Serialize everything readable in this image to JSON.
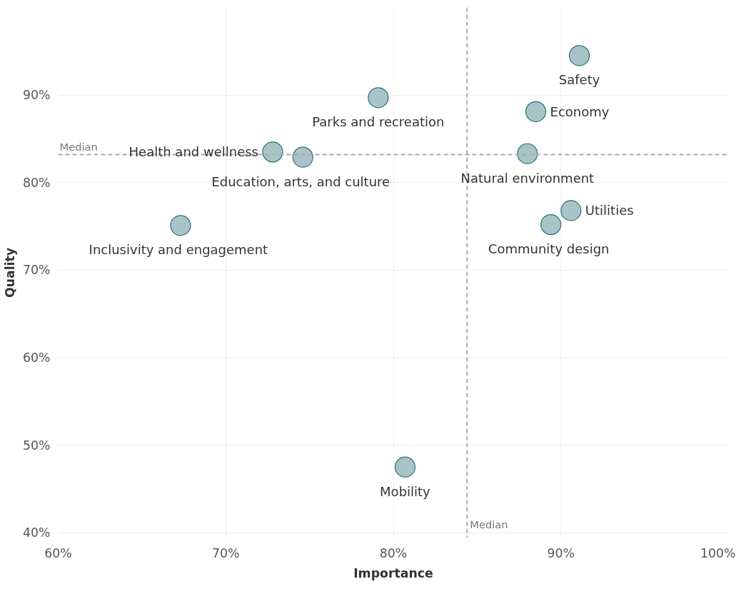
{
  "chart_data": {
    "type": "scatter",
    "xlabel": "Importance",
    "ylabel": "Quality",
    "x": [
      91.1,
      88.5,
      88.0,
      90.6,
      89.4,
      79.1,
      72.8,
      74.6,
      67.3,
      80.7
    ],
    "series": [
      {
        "color": "#a9c4c8",
        "values": [
          94.5,
          88.1,
          83.3,
          76.8,
          75.2,
          89.7,
          83.5,
          82.9,
          75.1,
          47.5
        ]
      }
    ],
    "xlim": [
      60,
      100
    ],
    "ylim": [
      40,
      100
    ],
    "xticks": [
      {
        "value": 60,
        "label": "60%"
      },
      {
        "value": 70,
        "label": "70%"
      },
      {
        "value": 80,
        "label": "80%"
      },
      {
        "value": 90,
        "label": "90%"
      },
      {
        "value": 100,
        "label": "100%"
      }
    ],
    "yticks": [
      {
        "value": 40,
        "label": "40%"
      },
      {
        "value": 50,
        "label": "50%"
      },
      {
        "value": 60,
        "label": "60%"
      },
      {
        "value": 70,
        "label": "70%"
      },
      {
        "value": 80,
        "label": "80%"
      },
      {
        "value": 90,
        "label": "90%"
      }
    ],
    "ref_lines": [
      {
        "axis": "x",
        "value": 84.4,
        "label": "Median",
        "color": "#aaaaaa",
        "line_style": "dashed"
      },
      {
        "axis": "y",
        "value": 83.2,
        "label": "Median",
        "color": "#aaaaaa",
        "line_style": "dashed"
      }
    ],
    "annotations": [
      {
        "text": "Safety",
        "x": 91.1,
        "y": 94.5
      },
      {
        "text": "Economy",
        "x": 88.5,
        "y": 88.1
      },
      {
        "text": "Natural environment",
        "x": 88.0,
        "y": 83.3
      },
      {
        "text": "Utilities",
        "x": 90.6,
        "y": 76.8
      },
      {
        "text": "Community design",
        "x": 89.4,
        "y": 75.2
      },
      {
        "text": "Parks and recreation",
        "x": 79.1,
        "y": 89.7
      },
      {
        "text": "Health and wellness",
        "x": 72.8,
        "y": 83.5
      },
      {
        "text": "Education, arts, and culture",
        "x": 74.6,
        "y": 82.9
      },
      {
        "text": "Inclusivity and engagement",
        "x": 67.3,
        "y": 75.1
      },
      {
        "text": "Mobility",
        "x": 80.7,
        "y": 47.5
      }
    ],
    "grid": true,
    "marker": "circle"
  }
}
